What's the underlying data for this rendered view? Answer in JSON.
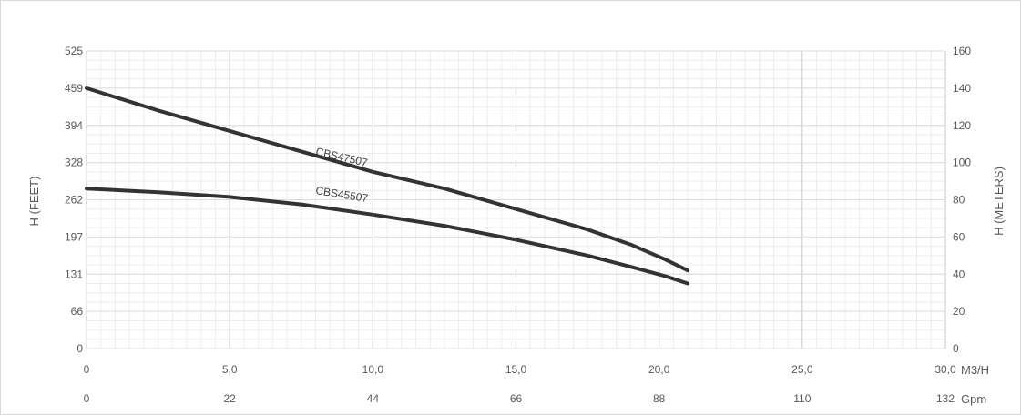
{
  "chart_data": {
    "type": "line",
    "xlabel_left": "H (FEET)",
    "ylabel_right": "H (METERS)",
    "x_unit_primary": "M3/H",
    "x_unit_secondary": "Gpm",
    "x_range": [
      0,
      30
    ],
    "y_meters_range": [
      0,
      160
    ],
    "x_ticks_primary": [
      "0",
      "5,0",
      "10,0",
      "15,0",
      "20,0",
      "25,0",
      "30,0"
    ],
    "x_ticks_secondary": [
      "0",
      "22",
      "44",
      "66",
      "88",
      "110",
      "132"
    ],
    "y_ticks_feet": [
      "0",
      "66",
      "131",
      "197",
      "262",
      "328",
      "394",
      "459",
      "525"
    ],
    "y_ticks_meters": [
      "0",
      "20",
      "40",
      "60",
      "80",
      "100",
      "120",
      "140",
      "160"
    ],
    "grid": true,
    "series": [
      {
        "name": "CBS47507",
        "color": "#333333",
        "x": [
          0,
          2.5,
          5,
          7.5,
          10,
          12.5,
          15,
          17.5,
          19,
          20.2,
          21
        ],
        "y_meters": [
          140,
          128,
          117,
          106,
          95,
          86,
          75,
          64,
          56,
          48,
          42
        ]
      },
      {
        "name": "CBS45507",
        "color": "#333333",
        "x": [
          0,
          2.5,
          5,
          7.5,
          10,
          12.5,
          15,
          17.5,
          19,
          20.2,
          21
        ],
        "y_meters": [
          86,
          84,
          81.5,
          77.5,
          72,
          66,
          58.5,
          50,
          44,
          39,
          35
        ]
      }
    ]
  }
}
